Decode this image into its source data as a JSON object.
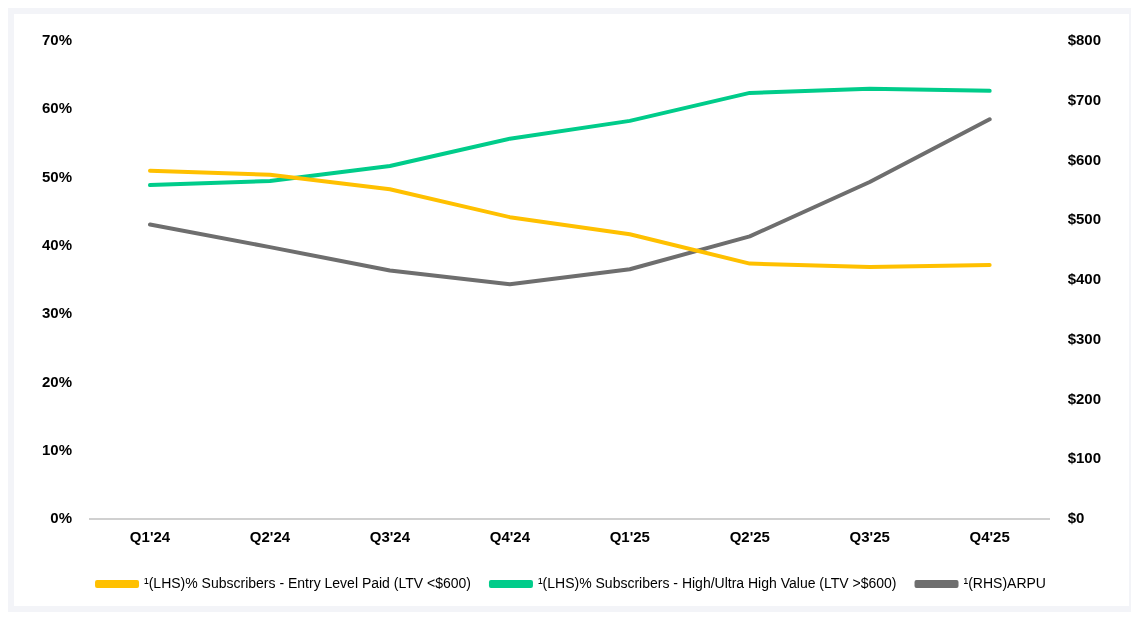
{
  "chart_data": {
    "type": "line",
    "categories": [
      "Q1'24",
      "Q2'24",
      "Q3'24",
      "Q4'24",
      "Q1'25",
      "Q2'25",
      "Q3'25",
      "Q4'25"
    ],
    "series": [
      {
        "name": "¹(LHS)% Subscribers - Entry Level Paid (LTV <$600)",
        "color": "#ffc000",
        "values": [
          51.0,
          50.4,
          48.3,
          44.2,
          41.7,
          37.4,
          36.9,
          37.2
        ]
      },
      {
        "name": "¹(LHS)% Subscribers - High/Ultra High Value (LTV >$600)",
        "color": "#00cc8a",
        "values": [
          48.9,
          49.5,
          51.7,
          55.7,
          58.3,
          62.4,
          63.0,
          62.7
        ]
      },
      {
        "name": "¹(RHS)ARPU",
        "color": "#6e6e6e",
        "axis": "y2",
        "values": [
          493,
          455,
          416,
          393,
          418,
          473,
          564,
          669
        ]
      }
    ],
    "ylim": [
      0,
      70
    ],
    "yticks": [
      {
        "value": 0,
        "label": "0%"
      },
      {
        "value": 10,
        "label": "10%"
      },
      {
        "value": 20,
        "label": "20%"
      },
      {
        "value": 30,
        "label": "30%"
      },
      {
        "value": 40,
        "label": "40%"
      },
      {
        "value": 50,
        "label": "50%"
      },
      {
        "value": 60,
        "label": "60%"
      },
      {
        "value": 70,
        "label": "70%"
      }
    ],
    "y2lim": [
      0,
      800
    ],
    "y2ticks": [
      {
        "value": 0,
        "label": "$0"
      },
      {
        "value": 100,
        "label": "$100"
      },
      {
        "value": 200,
        "label": "$200"
      },
      {
        "value": 300,
        "label": "$300"
      },
      {
        "value": 400,
        "label": "$400"
      },
      {
        "value": 500,
        "label": "$500"
      },
      {
        "value": 600,
        "label": "$600"
      },
      {
        "value": 700,
        "label": "$700"
      },
      {
        "value": 800,
        "label": "$800"
      }
    ],
    "grid": false,
    "legend": "bottom",
    "marker": "none",
    "line_style": "solid"
  }
}
